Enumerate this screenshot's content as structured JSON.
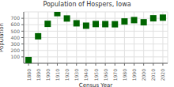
{
  "chart_data": {
    "type": "scatter",
    "title": "Population of Hospers, Iowa",
    "xlabel": "Census Year",
    "ylabel": "Population",
    "x": [
      1880,
      1890,
      1900,
      1910,
      1920,
      1930,
      1940,
      1950,
      1960,
      1970,
      1980,
      1990,
      2000,
      2010,
      2020
    ],
    "values": [
      50,
      420,
      614,
      780,
      697,
      622,
      585,
      611,
      609,
      607,
      651,
      672,
      638,
      700,
      710
    ],
    "color": "#006400",
    "marker": "square",
    "xlim": [
      1875,
      2025
    ],
    "xticks": [
      1880,
      1890,
      1900,
      1910,
      1920,
      1930,
      1940,
      1950,
      1960,
      1970,
      1980,
      1990,
      2000,
      2010,
      2020
    ],
    "ylim": [
      0,
      800
    ],
    "yticks": [
      100,
      200,
      300,
      400,
      500,
      600,
      700
    ],
    "grid": true
  }
}
